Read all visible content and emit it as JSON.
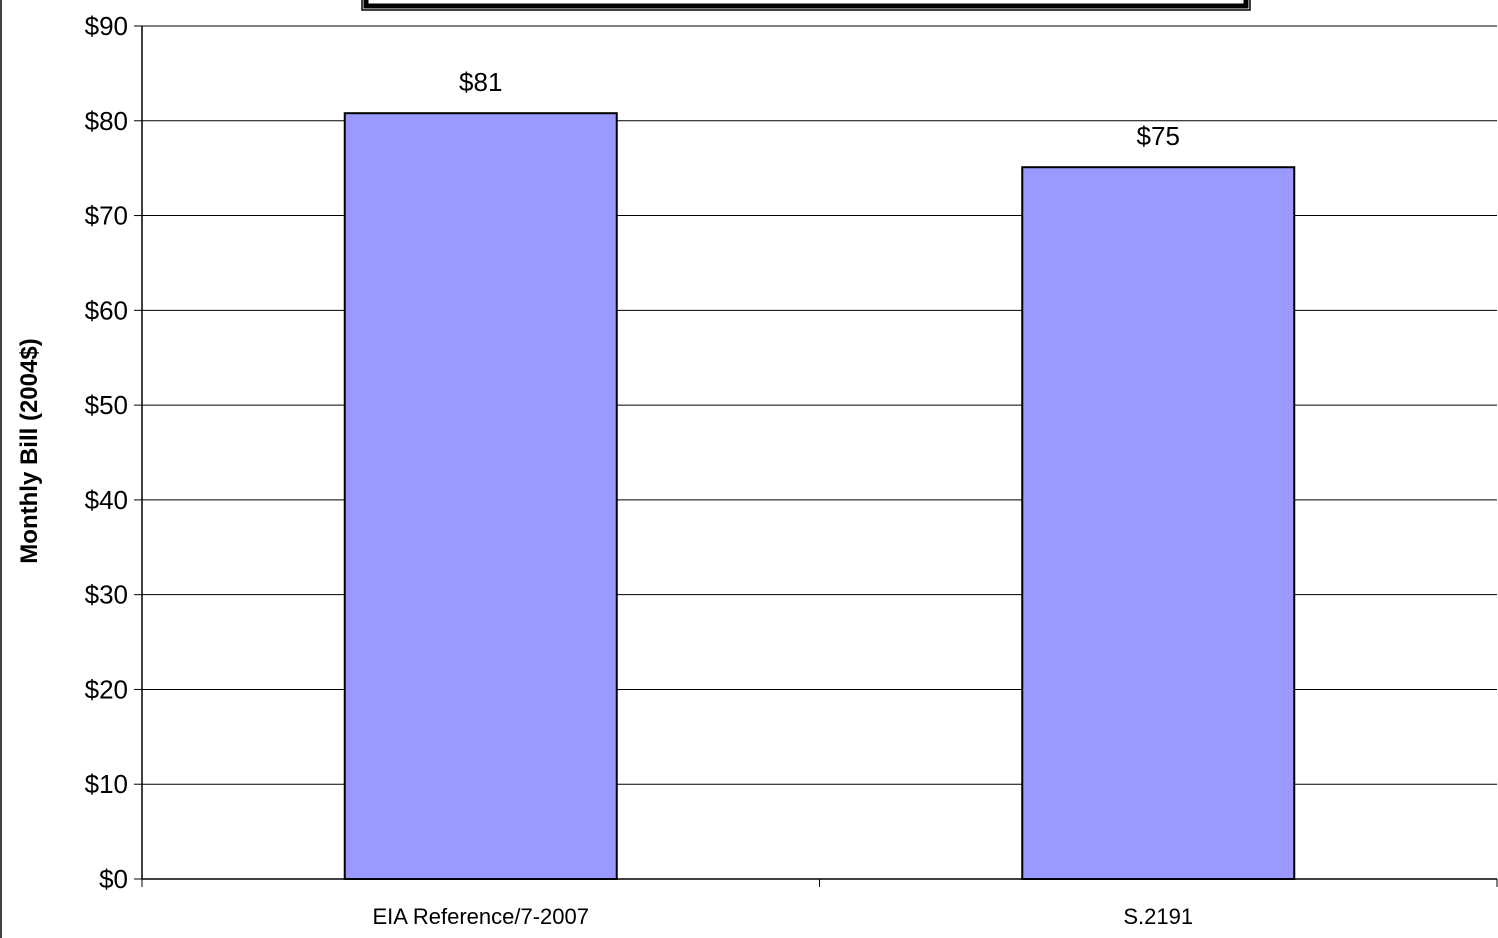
{
  "chart_data": {
    "type": "bar",
    "title": "",
    "xlabel": "",
    "ylabel": "Monthly Bill (2004$)",
    "categories": [
      "EIA Reference/7-2007",
      "S.2191"
    ],
    "values": [
      80.8,
      75.1
    ],
    "data_labels": [
      "$81",
      "$75"
    ],
    "ylim": [
      0,
      90
    ],
    "yticks": [
      0,
      10,
      20,
      30,
      40,
      50,
      60,
      70,
      80,
      90
    ],
    "ytick_labels": [
      "$0",
      "$10",
      "$20",
      "$30",
      "$40",
      "$50",
      "$60",
      "$70",
      "$80",
      "$90"
    ],
    "grid": true,
    "legend": "none"
  },
  "colors": {
    "bar_fill": "#9999ff",
    "bar_stroke": "#000000",
    "grid": "#000000",
    "axis": "#000000"
  }
}
